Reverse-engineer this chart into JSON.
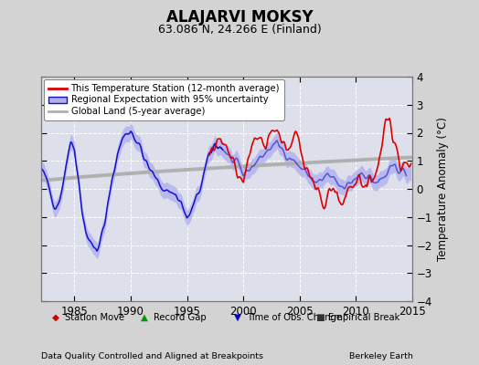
{
  "title": "ALAJARVI MOKSY",
  "subtitle": "63.086 N, 24.266 E (Finland)",
  "ylabel": "Temperature Anomaly (°C)",
  "xlabel_left": "Data Quality Controlled and Aligned at Breakpoints",
  "xlabel_right": "Berkeley Earth",
  "ylim": [
    -4,
    4
  ],
  "xlim": [
    1982.0,
    2015.0
  ],
  "xticks": [
    1985,
    1990,
    1995,
    2000,
    2005,
    2010,
    2015
  ],
  "yticks": [
    -4,
    -3,
    -2,
    -1,
    0,
    1,
    2,
    3,
    4
  ],
  "bg_color": "#d3d3d3",
  "plot_bg_color": "#dde0ea",
  "grid_color": "#ffffff",
  "line_red_color": "#dd0000",
  "line_blue_color": "#1111cc",
  "fill_blue_color": "#b0b0ee",
  "line_gray_color": "#b0b0b0",
  "legend_items": [
    "This Temperature Station (12-month average)",
    "Regional Expectation with 95% uncertainty",
    "Global Land (5-year average)"
  ],
  "marker_items": [
    "Station Move",
    "Record Gap",
    "Time of Obs. Change",
    "Empirical Break"
  ],
  "marker_colors": [
    "#cc0000",
    "#009900",
    "#0000cc",
    "#333333"
  ]
}
